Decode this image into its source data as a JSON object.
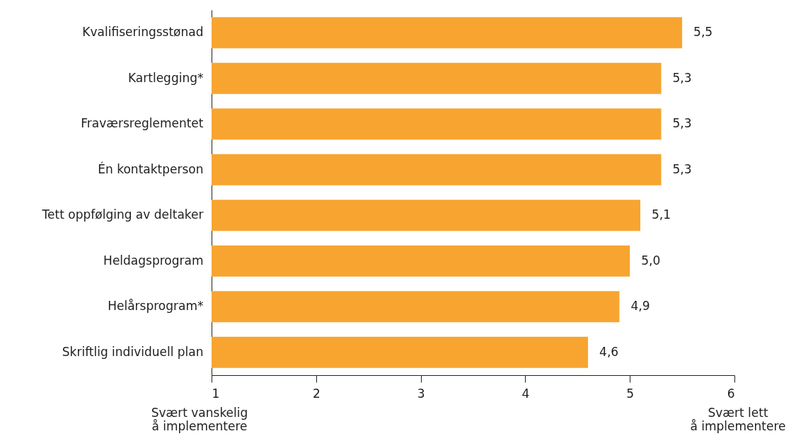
{
  "chart_data": {
    "type": "bar",
    "orientation": "horizontal",
    "categories": [
      "Kvalifiseringsstønad",
      "Kartlegging*",
      "Fraværsreglementet",
      "Én kontaktperson",
      "Tett oppfølging av deltaker",
      "Heldagsprogram",
      "Helårsprogram*",
      "Skriftlig individuell plan"
    ],
    "values": [
      5.5,
      5.3,
      5.3,
      5.3,
      5.1,
      5.0,
      4.9,
      4.6
    ],
    "value_labels": [
      "5,5",
      "5,3",
      "5,3",
      "5,3",
      "5,1",
      "5,0",
      "4,9",
      "4,6"
    ],
    "color": "#f7a530",
    "xlim": [
      1,
      6
    ],
    "xticks": [
      1,
      2,
      3,
      4,
      5,
      6
    ],
    "grid": false,
    "annotations": [
      "Svært vanskelig\nå implementere",
      "Svært lett\nå implementere"
    ]
  }
}
